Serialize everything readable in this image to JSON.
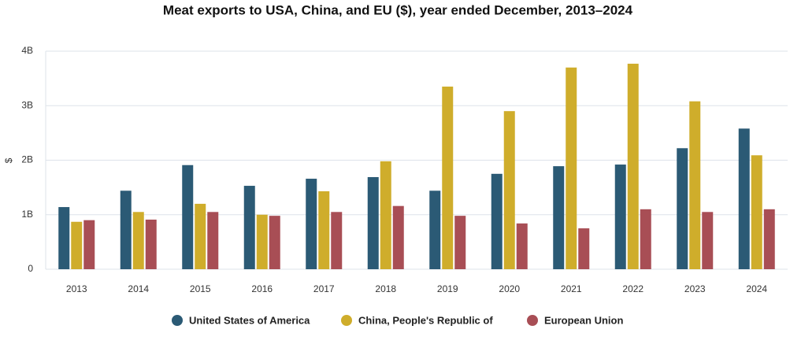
{
  "chart_data": {
    "type": "bar",
    "title": "Meat exports to USA, China, and EU ($), year ended December, 2013–2024",
    "y_label": "$",
    "categories": [
      "2013",
      "2014",
      "2015",
      "2016",
      "2017",
      "2018",
      "2019",
      "2020",
      "2021",
      "2022",
      "2023",
      "2024"
    ],
    "series": [
      {
        "name": "United States of America",
        "color": "#2b5a75",
        "values": [
          1140000000,
          1440000000,
          1910000000,
          1530000000,
          1660000000,
          1690000000,
          1440000000,
          1750000000,
          1890000000,
          1920000000,
          2220000000,
          2580000000
        ]
      },
      {
        "name": "China, People's Republic of",
        "color": "#cfad2b",
        "values": [
          870000000,
          1050000000,
          1200000000,
          1000000000,
          1430000000,
          1980000000,
          3350000000,
          2900000000,
          3700000000,
          3770000000,
          3080000000,
          2090000000
        ]
      },
      {
        "name": "European Union",
        "color": "#a84e55",
        "values": [
          900000000,
          910000000,
          1050000000,
          980000000,
          1050000000,
          1160000000,
          980000000,
          840000000,
          750000000,
          1100000000,
          1050000000,
          1100000000
        ]
      }
    ],
    "ylim": [
      0,
      4000000000
    ],
    "yticks": [
      0,
      {
        "value": 1000000000,
        "label": "1B"
      },
      {
        "value": 2000000000,
        "label": "2B"
      },
      {
        "value": 3000000000,
        "label": "3B"
      },
      {
        "value": 4000000000,
        "label": "4B"
      }
    ],
    "grid": true
  }
}
